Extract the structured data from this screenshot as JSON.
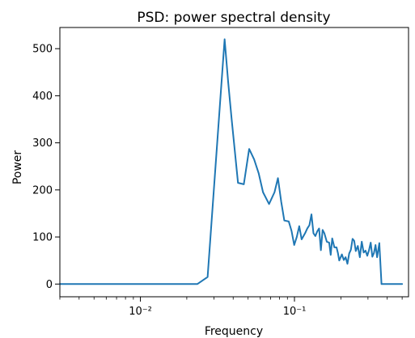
{
  "chart_data": {
    "type": "line",
    "title": "PSD: power spectral density",
    "xlabel": "Frequency",
    "ylabel": "Power",
    "xscale": "log",
    "xlim": [
      0.003,
      0.55
    ],
    "ylim": [
      -27,
      545
    ],
    "grid": false,
    "x_ticks": [
      {
        "value": 0.01,
        "label": "10⁻²"
      },
      {
        "value": 0.1,
        "label": "10⁻¹"
      }
    ],
    "y_ticks": [
      {
        "value": 0,
        "label": "0"
      },
      {
        "value": 100,
        "label": "100"
      },
      {
        "value": 200,
        "label": "200"
      },
      {
        "value": 300,
        "label": "300"
      },
      {
        "value": 400,
        "label": "400"
      },
      {
        "value": 500,
        "label": "500"
      }
    ],
    "series": [
      {
        "color": "#1f77b4",
        "x": [
          0.003,
          0.0234,
          0.0273,
          0.0352,
          0.0371,
          0.0391,
          0.043,
          0.0469,
          0.0508,
          0.0547,
          0.0586,
          0.0625,
          0.0684,
          0.0742,
          0.0781,
          0.082,
          0.0859,
          0.0918,
          0.0957,
          0.0996,
          0.1035,
          0.1074,
          0.1113,
          0.1172,
          0.1211,
          0.125,
          0.1289,
          0.1328,
          0.1367,
          0.1406,
          0.1445,
          0.1484,
          0.1523,
          0.1563,
          0.1621,
          0.168,
          0.1719,
          0.1758,
          0.1816,
          0.1875,
          0.1914,
          0.1953,
          0.2031,
          0.209,
          0.2148,
          0.2207,
          0.2266,
          0.2324,
          0.2383,
          0.2441,
          0.25,
          0.2578,
          0.2656,
          0.2734,
          0.2813,
          0.2891,
          0.2969,
          0.3047,
          0.3125,
          0.3203,
          0.3281,
          0.3359,
          0.3438,
          0.3555,
          0.3672,
          0.5
        ],
        "y": [
          0,
          0,
          15,
          520,
          430,
          350,
          215,
          212,
          287,
          265,
          235,
          195,
          170,
          195,
          225,
          175,
          135,
          133,
          113,
          83,
          100,
          123,
          95,
          108,
          118,
          125,
          148,
          108,
          102,
          112,
          118,
          72,
          115,
          108,
          90,
          88,
          62,
          97,
          78,
          78,
          66,
          50,
          63,
          51,
          57,
          43,
          65,
          73,
          96,
          92,
          70,
          81,
          57,
          90,
          67,
          71,
          60,
          72,
          88,
          58,
          66,
          83,
          57,
          87,
          0,
          0
        ]
      }
    ]
  }
}
